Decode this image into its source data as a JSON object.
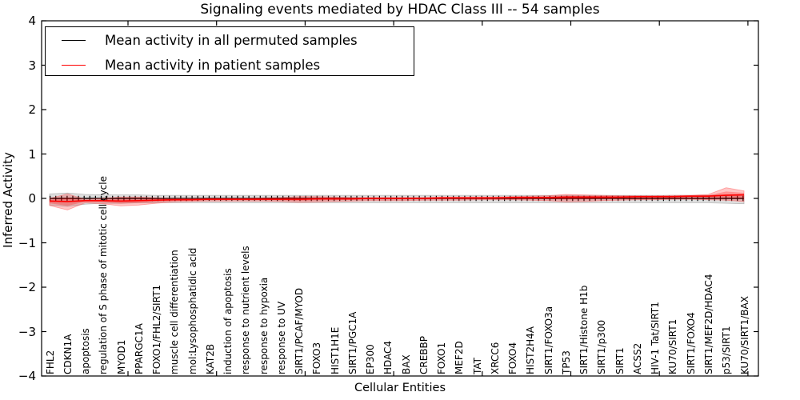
{
  "chart_data": {
    "type": "line",
    "title": "Signaling events mediated by HDAC Class III -- 54 samples",
    "xlabel": "Cellular Entities",
    "ylabel": "Inferred Activity",
    "ylim": [
      -4,
      4
    ],
    "yticks": [
      4,
      3,
      2,
      1,
      0,
      -1,
      -2,
      -3,
      -4
    ],
    "ytick_labels": [
      "4",
      "3",
      "2",
      "1",
      "0",
      "−1",
      "−2",
      "−3",
      "−4"
    ],
    "grid": false,
    "legend_position": "upper left",
    "categories": [
      "FHL2",
      "CDKN1A",
      "apoptosis",
      "regulation of S phase of mitotic cell cycle",
      "MYOD1",
      "PPARGC1A",
      "FOXO1/FHL2/SIRT1",
      "muscle cell differentiation",
      "mol:Lysophosphatidic acid",
      "KAT2B",
      "induction of apoptosis",
      "response to nutrient levels",
      "response to hypoxia",
      "response to UV",
      "SIRT1/PCAF/MYOD",
      "FOXO3",
      "HIST1H1E",
      "SIRT1/PGC1A",
      "EP300",
      "HDAC4",
      "BAX",
      "CREBBP",
      "FOXO1",
      "MEF2D",
      "TAT",
      "XRCC6",
      "FOXO4",
      "HIST2H4A",
      "SIRT1/FOXO3a",
      "TP53",
      "SIRT1/Histone H1b",
      "SIRT1/p300",
      "SIRT1",
      "ACSS2",
      "HIV-1 Tat/SIRT1",
      "KU70/SIRT1",
      "SIRT1/FOXO4",
      "SIRT1/MEF2D/HDAC4",
      "p53/SIRT1",
      "KU70/SIRT1/BAX"
    ],
    "series": [
      {
        "name": "Mean activity in all permuted samples",
        "color": "#000000",
        "band_color": "#c8c8c8",
        "values": [
          0,
          0,
          0,
          0,
          0,
          0,
          0,
          0,
          0,
          0,
          0,
          0,
          0,
          0,
          0,
          0,
          0,
          0,
          0,
          0,
          0,
          0,
          0,
          0,
          0,
          0,
          0,
          0,
          0,
          0,
          0,
          0,
          0,
          0,
          0,
          0,
          0,
          0,
          0,
          0
        ],
        "band_upper": [
          0.1,
          0.12,
          0.09,
          0.08,
          0.08,
          0.08,
          0.07,
          0.07,
          0.07,
          0.07,
          0.07,
          0.07,
          0.07,
          0.07,
          0.07,
          0.07,
          0.07,
          0.07,
          0.07,
          0.07,
          0.07,
          0.07,
          0.07,
          0.07,
          0.07,
          0.07,
          0.07,
          0.07,
          0.07,
          0.07,
          0.07,
          0.07,
          0.07,
          0.07,
          0.07,
          0.07,
          0.07,
          0.07,
          0.08,
          0.08
        ],
        "band_lower": [
          -0.15,
          -0.18,
          -0.13,
          -0.11,
          -0.11,
          -0.1,
          -0.1,
          -0.1,
          -0.1,
          -0.1,
          -0.1,
          -0.1,
          -0.1,
          -0.1,
          -0.1,
          -0.1,
          -0.1,
          -0.1,
          -0.1,
          -0.1,
          -0.1,
          -0.1,
          -0.1,
          -0.1,
          -0.1,
          -0.1,
          -0.1,
          -0.1,
          -0.1,
          -0.1,
          -0.1,
          -0.1,
          -0.1,
          -0.1,
          -0.1,
          -0.1,
          -0.1,
          -0.1,
          -0.11,
          -0.12
        ]
      },
      {
        "name": "Mean activity in patient samples",
        "color": "#ff0000",
        "band_color": "#f5a9a9",
        "values": [
          -0.06,
          -0.07,
          -0.05,
          -0.05,
          -0.06,
          -0.05,
          -0.04,
          -0.03,
          -0.03,
          -0.02,
          -0.02,
          -0.02,
          -0.02,
          -0.02,
          -0.02,
          -0.01,
          -0.01,
          -0.01,
          0.0,
          0.0,
          0.0,
          0.0,
          0.01,
          0.01,
          0.01,
          0.01,
          0.02,
          0.02,
          0.02,
          0.03,
          0.03,
          0.03,
          0.03,
          0.04,
          0.04,
          0.04,
          0.05,
          0.05,
          0.07,
          0.08
        ],
        "band_upper": [
          0.0,
          0.1,
          -0.02,
          0.0,
          0.03,
          0.03,
          0.01,
          0.0,
          0.0,
          0.0,
          0.0,
          0.0,
          0.01,
          0.02,
          0.04,
          0.04,
          0.03,
          0.02,
          0.02,
          0.02,
          0.02,
          0.02,
          0.03,
          0.03,
          0.03,
          0.03,
          0.04,
          0.05,
          0.06,
          0.09,
          0.08,
          0.07,
          0.06,
          0.06,
          0.06,
          0.07,
          0.07,
          0.09,
          0.24,
          0.17
        ],
        "band_lower": [
          -0.16,
          -0.26,
          -0.1,
          -0.12,
          -0.17,
          -0.15,
          -0.11,
          -0.08,
          -0.07,
          -0.06,
          -0.06,
          -0.06,
          -0.06,
          -0.07,
          -0.09,
          -0.08,
          -0.07,
          -0.06,
          -0.05,
          -0.05,
          -0.05,
          -0.04,
          -0.04,
          -0.04,
          -0.03,
          -0.03,
          -0.03,
          -0.04,
          -0.05,
          -0.08,
          -0.07,
          -0.05,
          -0.04,
          -0.03,
          -0.03,
          -0.02,
          -0.02,
          -0.03,
          -0.04,
          -0.07
        ]
      }
    ]
  }
}
